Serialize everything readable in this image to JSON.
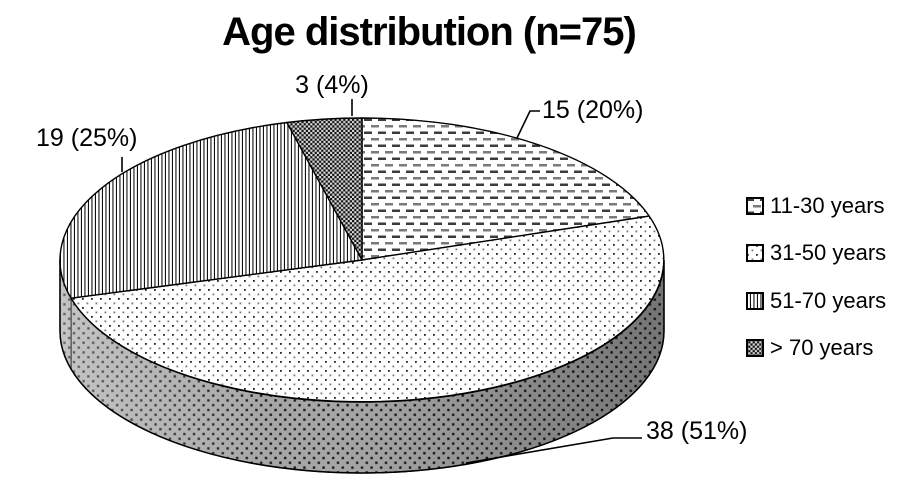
{
  "chart_data": {
    "type": "pie",
    "is_3d": true,
    "title": "Age distribution (n=75)",
    "total_n": 75,
    "start_angle_deg": 0,
    "direction": "clockwise",
    "legend_position": "right",
    "slices": [
      {
        "name": "11-30 years",
        "value": 15,
        "pct": 20,
        "label": "15 (20%)",
        "pattern": "dashes"
      },
      {
        "name": "31-50 years",
        "value": 38,
        "pct": 51,
        "label": "38 (51%)",
        "pattern": "dots"
      },
      {
        "name": "51-70 years",
        "value": 19,
        "pct": 25,
        "label": "19 (25%)",
        "pattern": "vlines"
      },
      {
        "name": "> 70 years",
        "value": 3,
        "pct": 4,
        "label": "3 (4%)",
        "pattern": "check"
      }
    ],
    "colors": {
      "foreground": "#000000",
      "background": "#ffffff",
      "side_gray": "#a6a6a6"
    }
  }
}
